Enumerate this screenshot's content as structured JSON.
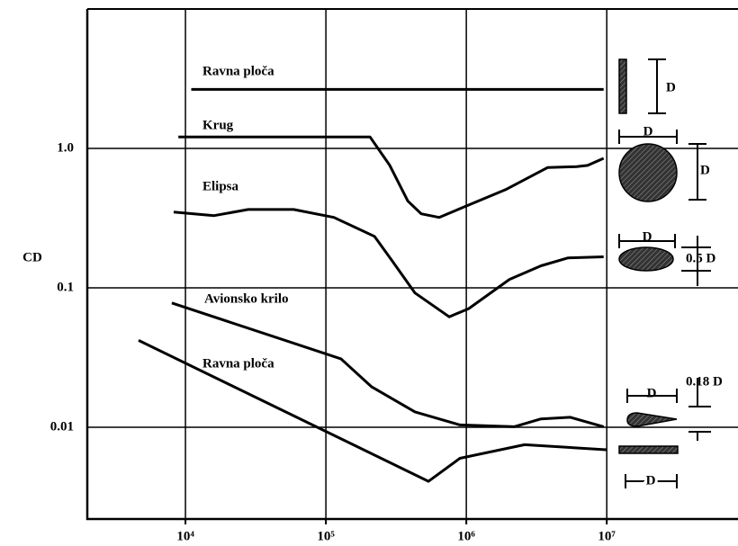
{
  "chart_data": {
    "type": "line",
    "y_label": "CD",
    "xscale": "log",
    "yscale": "log",
    "grid": true,
    "xlim": [
      2000,
      86000000
    ],
    "ylim": [
      0.0022,
      10
    ],
    "xticks": [
      {
        "value": 10000,
        "label": "10⁴"
      },
      {
        "value": 100000,
        "label": "10⁵"
      },
      {
        "value": 1000000,
        "label": "10⁶"
      },
      {
        "value": 10000000,
        "label": "10⁷"
      }
    ],
    "yticks": [
      {
        "value": 1,
        "label": "1.0"
      },
      0.1,
      0.01
    ],
    "series": [
      {
        "name": "Ravna ploča",
        "color": "#000000",
        "x": [
          11000,
          9500000
        ],
        "values": [
          2.65,
          2.65
        ]
      },
      {
        "name": "Krug",
        "color": "#000000",
        "x": [
          8900,
          206000,
          285000,
          383000,
          477000,
          640000,
          1900000,
          3800000,
          6100000,
          7300000,
          9500000
        ],
        "values": [
          1.21,
          1.21,
          0.755,
          0.42,
          0.34,
          0.32,
          0.506,
          0.73,
          0.74,
          0.755,
          0.85
        ]
      },
      {
        "name": "Elipsa",
        "color": "#000000",
        "x": [
          8250,
          16000,
          28000,
          59000,
          114000,
          222000,
          298000,
          431000,
          755000,
          1040000,
          2030000,
          3400000,
          5300000,
          9500000
        ],
        "values": [
          0.35,
          0.33,
          0.365,
          0.365,
          0.32,
          0.234,
          0.155,
          0.092,
          0.062,
          0.071,
          0.115,
          0.144,
          0.164,
          0.167
        ]
      },
      {
        "name": "Avionsko krilo",
        "color": "#000000",
        "x": [
          8000,
          128000,
          212000,
          431000,
          900000,
          2190000,
          3400000,
          5500000,
          9500000
        ],
        "values": [
          0.078,
          0.031,
          0.0195,
          0.0129,
          0.0104,
          0.0101,
          0.0115,
          0.0118,
          0.0101
        ]
      },
      {
        "name": "Ravna ploča",
        "color": "#000000",
        "x": [
          4640,
          538000,
          900000,
          2600000,
          9900000
        ],
        "values": [
          0.042,
          0.0041,
          0.006,
          0.0075,
          0.0069
        ]
      }
    ],
    "shape_labels": [
      "D",
      "D",
      "D",
      "D",
      "0.5 D",
      "D",
      "0.18 D",
      "D"
    ]
  }
}
